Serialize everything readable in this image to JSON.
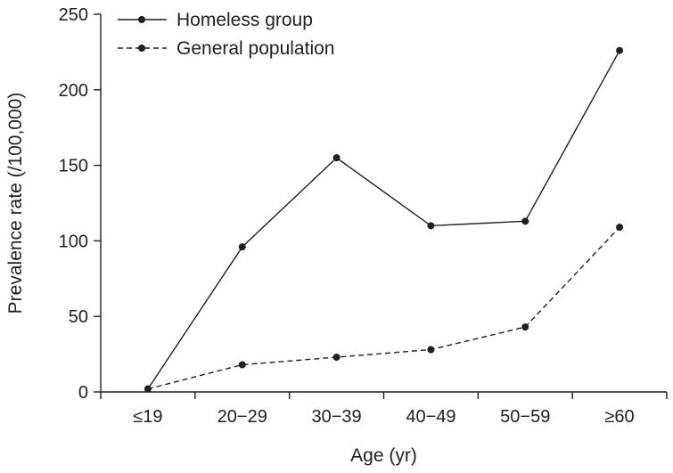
{
  "chart_data": {
    "type": "line",
    "title": "",
    "xlabel": "Age (yr)",
    "ylabel": "Prevalence rate (/100,000)",
    "categories": [
      "≤19",
      "20−29",
      "30−39",
      "40−49",
      "50−59",
      "≥60"
    ],
    "ylim": [
      0,
      250
    ],
    "yticks": [
      0,
      50,
      100,
      150,
      200,
      250
    ],
    "grid": false,
    "legend_position": "top-left",
    "series": [
      {
        "name": "Homeless group",
        "style": "solid",
        "values": [
          2,
          96,
          155,
          110,
          113,
          226
        ]
      },
      {
        "name": "General population",
        "style": "dashed",
        "values": [
          2,
          18,
          23,
          28,
          43,
          109
        ]
      }
    ]
  },
  "colors": {
    "ink": "#231f20"
  }
}
